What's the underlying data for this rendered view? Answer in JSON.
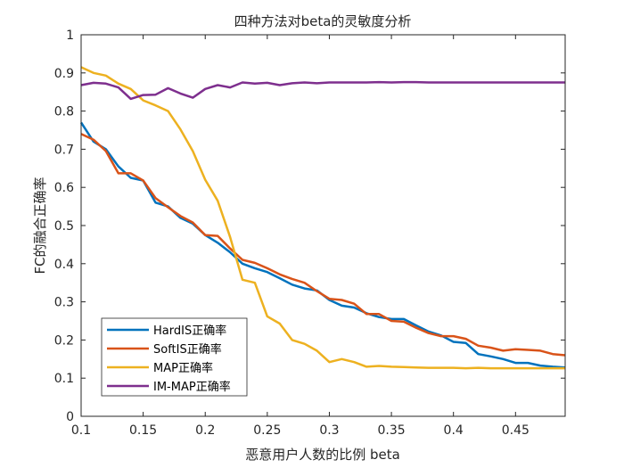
{
  "chart_data": {
    "type": "line",
    "title": "四种方法对beta的灵敏度分析",
    "xlabel": "恶意用户人数的比例 beta",
    "ylabel": "FC的融合正确率",
    "xlim": [
      0.1,
      0.49
    ],
    "ylim": [
      0,
      1
    ],
    "xticks": [
      0.1,
      0.15,
      0.2,
      0.25,
      0.3,
      0.35,
      0.4,
      0.45
    ],
    "xtick_labels": [
      "0.1",
      "0.15",
      "0.2",
      "0.25",
      "0.3",
      "0.35",
      "0.4",
      "0.45"
    ],
    "yticks": [
      0,
      0.1,
      0.2,
      0.3,
      0.4,
      0.5,
      0.6,
      0.7,
      0.8,
      0.9,
      1
    ],
    "ytick_labels": [
      "0",
      "0.1",
      "0.2",
      "0.3",
      "0.4",
      "0.5",
      "0.6",
      "0.7",
      "0.8",
      "0.9",
      "1"
    ],
    "grid": false,
    "legend_position": "bottom-left",
    "x": [
      0.1,
      0.11,
      0.12,
      0.13,
      0.14,
      0.15,
      0.16,
      0.17,
      0.18,
      0.19,
      0.2,
      0.21,
      0.22,
      0.23,
      0.24,
      0.25,
      0.26,
      0.27,
      0.28,
      0.29,
      0.3,
      0.31,
      0.32,
      0.33,
      0.34,
      0.35,
      0.36,
      0.37,
      0.38,
      0.39,
      0.4,
      0.41,
      0.42,
      0.43,
      0.44,
      0.45,
      0.46,
      0.47,
      0.48,
      0.49
    ],
    "series": [
      {
        "name": "HardIS正确率",
        "color": "#0072BD",
        "values": [
          0.77,
          0.72,
          0.7,
          0.655,
          0.625,
          0.618,
          0.56,
          0.55,
          0.52,
          0.505,
          0.475,
          0.455,
          0.43,
          0.4,
          0.388,
          0.378,
          0.362,
          0.345,
          0.335,
          0.33,
          0.305,
          0.29,
          0.285,
          0.27,
          0.26,
          0.255,
          0.255,
          0.238,
          0.222,
          0.212,
          0.195,
          0.192,
          0.163,
          0.157,
          0.15,
          0.14,
          0.14,
          0.133,
          0.13,
          0.128
        ]
      },
      {
        "name": "SoftIS正确率",
        "color": "#D95319",
        "values": [
          0.74,
          0.725,
          0.695,
          0.637,
          0.637,
          0.618,
          0.572,
          0.548,
          0.525,
          0.508,
          0.475,
          0.473,
          0.44,
          0.41,
          0.402,
          0.388,
          0.372,
          0.36,
          0.35,
          0.328,
          0.308,
          0.305,
          0.295,
          0.268,
          0.268,
          0.25,
          0.248,
          0.232,
          0.218,
          0.21,
          0.21,
          0.203,
          0.185,
          0.18,
          0.172,
          0.176,
          0.174,
          0.172,
          0.163,
          0.16
        ]
      },
      {
        "name": "MAP正确率",
        "color": "#EDB120",
        "values": [
          0.915,
          0.9,
          0.893,
          0.872,
          0.858,
          0.828,
          0.815,
          0.8,
          0.752,
          0.695,
          0.62,
          0.565,
          0.47,
          0.358,
          0.35,
          0.262,
          0.243,
          0.2,
          0.19,
          0.172,
          0.142,
          0.15,
          0.142,
          0.13,
          0.132,
          0.13,
          0.129,
          0.128,
          0.127,
          0.127,
          0.127,
          0.126,
          0.127,
          0.126,
          0.126,
          0.126,
          0.126,
          0.126,
          0.126,
          0.126
        ]
      },
      {
        "name": "IM-MAP正确率",
        "color": "#7E2F8E",
        "values": [
          0.868,
          0.874,
          0.872,
          0.862,
          0.832,
          0.842,
          0.843,
          0.86,
          0.846,
          0.835,
          0.858,
          0.868,
          0.862,
          0.875,
          0.872,
          0.874,
          0.868,
          0.873,
          0.875,
          0.873,
          0.875,
          0.875,
          0.875,
          0.875,
          0.876,
          0.875,
          0.876,
          0.876,
          0.875,
          0.875,
          0.875,
          0.875,
          0.875,
          0.875,
          0.875,
          0.875,
          0.875,
          0.875,
          0.875,
          0.875
        ]
      }
    ]
  }
}
